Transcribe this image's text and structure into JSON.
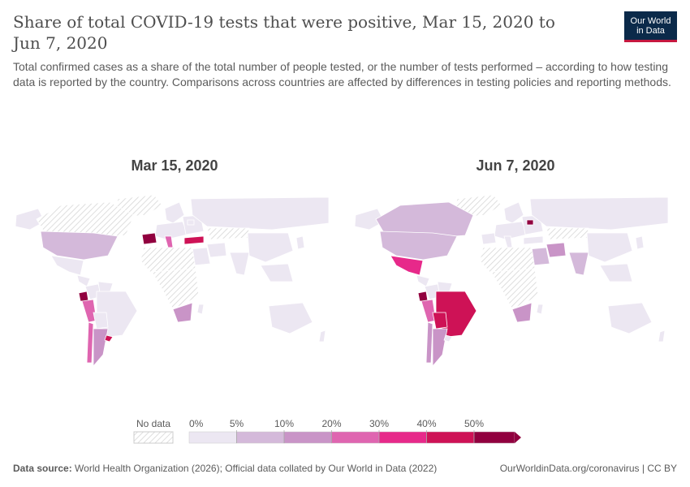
{
  "header": {
    "title": "Share of total COVID-19 tests that were positive, Mar 15, 2020 to Jun 7, 2020",
    "subtitle": "Total confirmed cases as a share of the total number of people tested, or the number of tests performed – according to how testing data is reported by the country. Comparisons across countries are affected by differences in testing policies and reporting methods.",
    "logo_line1": "Our World",
    "logo_line2": "in Data"
  },
  "maps": [
    {
      "date_label": "Mar 15, 2020",
      "regions": [
        {
          "name": "United States",
          "bin": "5-10%"
        },
        {
          "name": "Canada",
          "bin": "no data"
        },
        {
          "name": "Spain",
          "bin": ">50%"
        },
        {
          "name": "Italy",
          "bin": "20-30%"
        },
        {
          "name": "Turkey",
          "bin": "40-50%"
        },
        {
          "name": "Ecuador",
          "bin": ">50%"
        },
        {
          "name": "Peru",
          "bin": "20-30%"
        },
        {
          "name": "Argentina",
          "bin": "10-20%"
        },
        {
          "name": "Chile",
          "bin": "20-30%"
        },
        {
          "name": "Uruguay",
          "bin": "40-50%"
        },
        {
          "name": "Mexico",
          "bin": "0-5%"
        },
        {
          "name": "South Africa",
          "bin": "10-20%"
        },
        {
          "name": "Russia",
          "bin": "0-5%"
        },
        {
          "name": "Australia",
          "bin": "0-5%"
        }
      ]
    },
    {
      "date_label": "Jun 7, 2020",
      "regions": [
        {
          "name": "United States",
          "bin": "5-10%"
        },
        {
          "name": "Canada",
          "bin": "5-10%"
        },
        {
          "name": "Mexico",
          "bin": "30-40%"
        },
        {
          "name": "Brazil",
          "bin": "40-50%"
        },
        {
          "name": "Peru",
          "bin": "20-30%"
        },
        {
          "name": "Ecuador",
          "bin": ">50%"
        },
        {
          "name": "Argentina",
          "bin": "10-20%"
        },
        {
          "name": "Chile",
          "bin": "10-20%"
        },
        {
          "name": "Bolivia",
          "bin": "40-50%"
        },
        {
          "name": "Iran",
          "bin": "10-20%"
        },
        {
          "name": "India",
          "bin": "5-10%"
        },
        {
          "name": "Saudi Arabia",
          "bin": "5-10%"
        },
        {
          "name": "Russia",
          "bin": "0-5%"
        },
        {
          "name": "Australia",
          "bin": "0-5%"
        },
        {
          "name": "South Africa",
          "bin": "10-20%"
        },
        {
          "name": "Belarus",
          "bin": ">50%"
        }
      ]
    }
  ],
  "legend": {
    "no_data_label": "No data",
    "ticks": [
      "0%",
      "5%",
      "10%",
      "20%",
      "30%",
      "40%",
      "50%"
    ],
    "bins": [
      {
        "label": "0-5%",
        "color": "#ece7f2"
      },
      {
        "label": "5-10%",
        "color": "#d4b9da"
      },
      {
        "label": "10-20%",
        "color": "#c994c7"
      },
      {
        "label": "20-30%",
        "color": "#df65b0"
      },
      {
        "label": "30-40%",
        "color": "#e7298a"
      },
      {
        "label": "40-50%",
        "color": "#ce1256"
      },
      {
        "label": ">50%",
        "color": "#91003f"
      }
    ]
  },
  "footer": {
    "source_label": "Data source:",
    "source_text": "World Health Organization (2026); Official data collated by Our World in Data (2022)",
    "right_text": "OurWorldinData.org/coronavirus | CC BY"
  }
}
